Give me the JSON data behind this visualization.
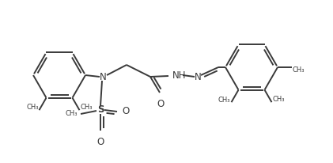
{
  "bg_color": "#ffffff",
  "line_color": "#3a3a3a",
  "line_width": 1.4,
  "figsize": [
    4.21,
    2.06
  ],
  "dpi": 100,
  "xlim": [
    0,
    421
  ],
  "ylim": [
    0,
    206
  ]
}
